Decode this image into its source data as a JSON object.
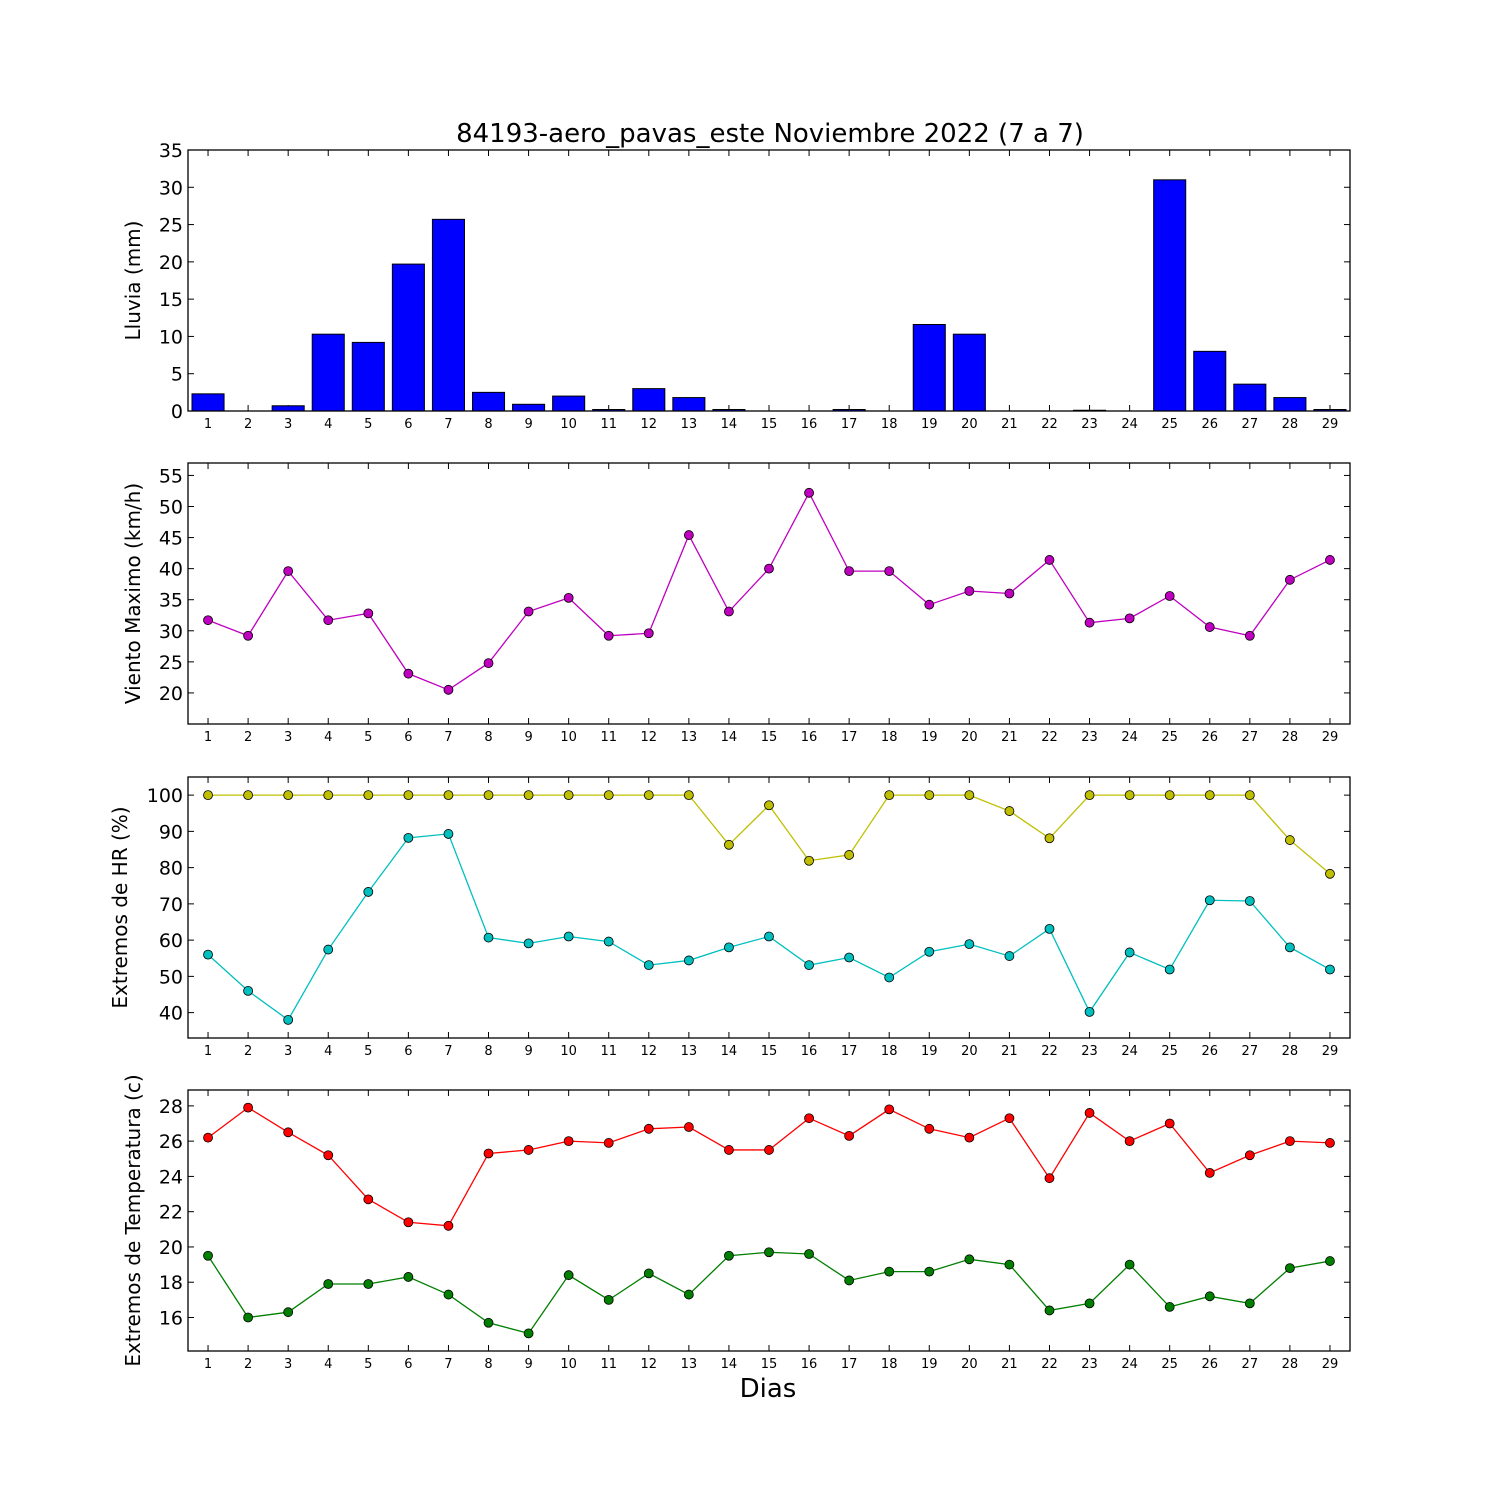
{
  "title": "84193-aero_pavas_este Noviembre 2022  (7 a 7)",
  "xlabel": "Dias",
  "chart_data": [
    {
      "type": "bar",
      "title": "84193-aero_pavas_este Noviembre 2022  (7 a 7)",
      "xlabel": "",
      "ylabel": "Lluvia (mm)",
      "ylim": [
        0,
        35
      ],
      "yticks": [
        0,
        5,
        10,
        15,
        20,
        25,
        30,
        35
      ],
      "categories": [
        1,
        2,
        3,
        4,
        5,
        6,
        7,
        8,
        9,
        10,
        11,
        12,
        13,
        14,
        15,
        16,
        17,
        18,
        19,
        20,
        21,
        22,
        23,
        24,
        25,
        26,
        27,
        28,
        29
      ],
      "values": [
        2.3,
        0,
        0.7,
        10.3,
        9.2,
        19.7,
        25.7,
        2.5,
        0.9,
        2.0,
        0.2,
        3.0,
        1.8,
        0.2,
        0,
        0,
        0.2,
        0,
        11.6,
        10.3,
        0,
        0,
        0.1,
        0,
        31.0,
        8.0,
        3.6,
        1.8,
        0.2
      ],
      "color": "#0000ff",
      "grid": false
    },
    {
      "type": "line",
      "ylabel": "Viento Maximo (km/h)",
      "ylim": [
        15,
        57
      ],
      "yticks": [
        20,
        25,
        30,
        35,
        40,
        45,
        50,
        55
      ],
      "x": [
        1,
        2,
        3,
        4,
        5,
        6,
        7,
        8,
        9,
        10,
        11,
        12,
        13,
        14,
        15,
        16,
        17,
        18,
        19,
        20,
        21,
        22,
        23,
        24,
        25,
        26,
        27,
        28,
        29
      ],
      "series": [
        {
          "values": [
            31.7,
            29.2,
            39.6,
            31.7,
            32.8,
            23.1,
            20.5,
            24.8,
            33.1,
            35.3,
            29.2,
            29.6,
            45.4,
            33.1,
            40.0,
            52.2,
            39.6,
            39.6,
            34.2,
            36.4,
            36.0,
            41.4,
            31.3,
            32.0,
            35.6,
            30.6,
            29.2,
            38.2,
            41.4
          ],
          "color": "#bf00bf"
        }
      ],
      "grid": false
    },
    {
      "type": "line",
      "ylabel": "Extremos de HR (%)",
      "ylim": [
        33,
        105
      ],
      "yticks": [
        40,
        50,
        60,
        70,
        80,
        90,
        100
      ],
      "x": [
        1,
        2,
        3,
        4,
        5,
        6,
        7,
        8,
        9,
        10,
        11,
        12,
        13,
        14,
        15,
        16,
        17,
        18,
        19,
        20,
        21,
        22,
        23,
        24,
        25,
        26,
        27,
        28,
        29
      ],
      "series": [
        {
          "values": [
            100,
            100,
            100,
            100,
            100,
            100,
            100,
            100,
            100,
            100,
            100,
            100,
            100,
            86.3,
            97.2,
            81.9,
            83.5,
            100,
            100,
            100,
            95.6,
            88.1,
            100,
            100,
            100,
            100,
            100,
            87.6,
            78.3
          ],
          "color": "#bfbf00"
        },
        {
          "values": [
            56,
            46,
            38,
            57.4,
            73.3,
            88.2,
            89.3,
            60.7,
            59.1,
            61,
            59.6,
            53.1,
            54.4,
            58,
            61,
            53.1,
            55.2,
            49.7,
            56.8,
            58.9,
            55.6,
            63.1,
            40.2,
            56.6,
            51.9,
            71,
            70.8,
            58,
            51.9
          ],
          "color": "#00bfbf"
        }
      ],
      "grid": false
    },
    {
      "type": "line",
      "ylabel": "Extremos de Temperatura (c)",
      "ylim": [
        14.1,
        28.9
      ],
      "yticks": [
        16,
        18,
        20,
        22,
        24,
        26,
        28
      ],
      "x": [
        1,
        2,
        3,
        4,
        5,
        6,
        7,
        8,
        9,
        10,
        11,
        12,
        13,
        14,
        15,
        16,
        17,
        18,
        19,
        20,
        21,
        22,
        23,
        24,
        25,
        26,
        27,
        28,
        29
      ],
      "series": [
        {
          "values": [
            26.2,
            27.9,
            26.5,
            25.2,
            22.7,
            21.4,
            21.2,
            25.3,
            25.5,
            26.0,
            25.9,
            26.7,
            26.8,
            25.5,
            25.5,
            27.3,
            26.3,
            27.8,
            26.7,
            26.2,
            27.3,
            23.9,
            27.6,
            26.0,
            27.0,
            24.2,
            25.2,
            26.0,
            25.9
          ],
          "color": "#ff0000"
        },
        {
          "values": [
            19.5,
            16.0,
            16.3,
            17.9,
            17.9,
            18.3,
            17.3,
            15.7,
            15.1,
            18.4,
            17.0,
            18.5,
            17.3,
            19.5,
            19.7,
            19.6,
            18.1,
            18.6,
            18.6,
            19.3,
            19.0,
            16.4,
            16.8,
            19.0,
            16.6,
            17.2,
            16.8,
            18.8,
            19.2
          ],
          "color": "#007f00"
        }
      ],
      "grid": false
    }
  ]
}
